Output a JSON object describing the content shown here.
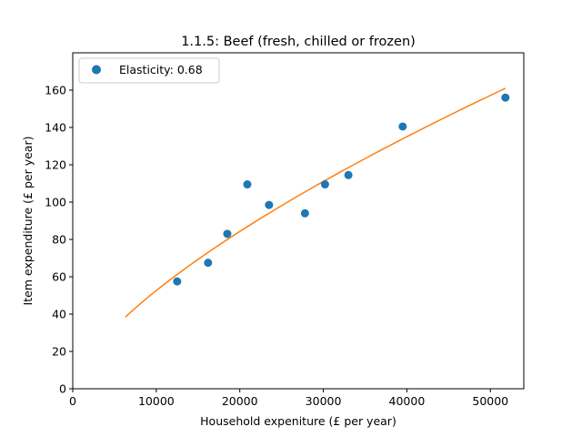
{
  "chart_data": {
    "type": "scatter",
    "title": "1.1.5: Beef (fresh, chilled or frozen)",
    "xlabel": "Household expeniture (£ per year)",
    "ylabel": "Item expenditure (£ per year)",
    "xlim": [
      0,
      54000
    ],
    "ylim": [
      0,
      180
    ],
    "xticks": [
      0,
      10000,
      20000,
      30000,
      40000,
      50000
    ],
    "yticks": [
      0,
      20,
      40,
      60,
      80,
      100,
      120,
      140,
      160
    ],
    "grid": false,
    "legend_position": "top-left",
    "series": [
      {
        "name": "Elasticity: 0.68",
        "kind": "scatter",
        "color": "#1f77b4",
        "points": [
          [
            12500,
            57.5
          ],
          [
            16200,
            67.5
          ],
          [
            18500,
            83
          ],
          [
            20900,
            109.5
          ],
          [
            23500,
            98.5
          ],
          [
            27800,
            94
          ],
          [
            30200,
            109.5
          ],
          [
            33000,
            114.5
          ],
          [
            39500,
            140.5
          ],
          [
            51800,
            156
          ]
        ]
      },
      {
        "kind": "line",
        "color": "#ff7f0e",
        "fit": {
          "model": "power",
          "anchor_x": 51800,
          "anchor_y": 161,
          "exponent": 0.68,
          "x_range": [
            6300,
            51800
          ]
        }
      }
    ]
  }
}
